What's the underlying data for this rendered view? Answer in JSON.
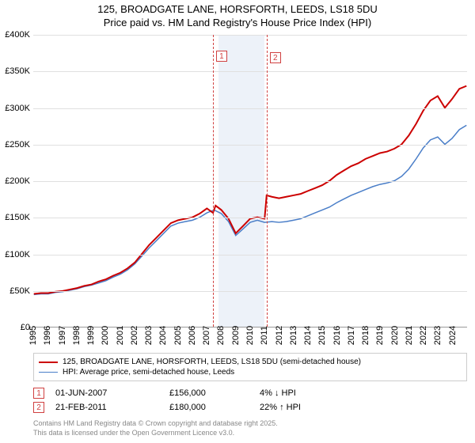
{
  "title_line1": "125, BROADGATE LANE, HORSFORTH, LEEDS, LS18 5DU",
  "title_line2": "Price paid vs. HM Land Registry's House Price Index (HPI)",
  "chart": {
    "type": "line",
    "x_start_year": 1995,
    "x_end_year": 2025,
    "y_min": 0,
    "y_max": 400000,
    "y_tick_step": 50000,
    "y_tick_labels": [
      "£0",
      "£50K",
      "£100K",
      "£150K",
      "£200K",
      "£250K",
      "£300K",
      "£350K",
      "£400K"
    ],
    "x_tick_labels": [
      "1995",
      "1996",
      "1997",
      "1998",
      "1999",
      "2000",
      "2001",
      "2002",
      "2003",
      "2004",
      "2005",
      "2006",
      "2007",
      "2008",
      "2009",
      "2010",
      "2011",
      "2012",
      "2013",
      "2014",
      "2015",
      "2016",
      "2017",
      "2018",
      "2019",
      "2020",
      "2021",
      "2022",
      "2023",
      "2024"
    ],
    "background_color": "#ffffff",
    "grid_color": "#e0e0e0",
    "series": [
      {
        "name": "property",
        "label": "125, BROADGATE LANE, HORSFORTH, LEEDS, LS18 5DU (semi-detached house)",
        "color": "#cc0000",
        "width": 2,
        "data": [
          [
            1995.0,
            45
          ],
          [
            1995.5,
            46
          ],
          [
            1996.0,
            46
          ],
          [
            1996.5,
            48
          ],
          [
            1997.0,
            49
          ],
          [
            1997.5,
            51
          ],
          [
            1998.0,
            53
          ],
          [
            1998.5,
            56
          ],
          [
            1999.0,
            58
          ],
          [
            1999.5,
            62
          ],
          [
            2000.0,
            65
          ],
          [
            2000.5,
            70
          ],
          [
            2001.0,
            74
          ],
          [
            2001.5,
            80
          ],
          [
            2002.0,
            88
          ],
          [
            2002.5,
            100
          ],
          [
            2003.0,
            112
          ],
          [
            2003.5,
            122
          ],
          [
            2004.0,
            132
          ],
          [
            2004.5,
            142
          ],
          [
            2005.0,
            146
          ],
          [
            2005.5,
            148
          ],
          [
            2006.0,
            150
          ],
          [
            2006.5,
            155
          ],
          [
            2007.0,
            162
          ],
          [
            2007.42,
            156
          ],
          [
            2007.6,
            166
          ],
          [
            2008.0,
            160
          ],
          [
            2008.5,
            148
          ],
          [
            2009.0,
            128
          ],
          [
            2009.5,
            138
          ],
          [
            2010.0,
            148
          ],
          [
            2010.5,
            150
          ],
          [
            2011.0,
            148
          ],
          [
            2011.14,
            180
          ],
          [
            2011.5,
            178
          ],
          [
            2012.0,
            176
          ],
          [
            2012.5,
            178
          ],
          [
            2013.0,
            180
          ],
          [
            2013.5,
            182
          ],
          [
            2014.0,
            186
          ],
          [
            2014.5,
            190
          ],
          [
            2015.0,
            194
          ],
          [
            2015.5,
            200
          ],
          [
            2016.0,
            208
          ],
          [
            2016.5,
            214
          ],
          [
            2017.0,
            220
          ],
          [
            2017.5,
            224
          ],
          [
            2018.0,
            230
          ],
          [
            2018.5,
            234
          ],
          [
            2019.0,
            238
          ],
          [
            2019.5,
            240
          ],
          [
            2020.0,
            244
          ],
          [
            2020.5,
            250
          ],
          [
            2021.0,
            262
          ],
          [
            2021.5,
            278
          ],
          [
            2022.0,
            296
          ],
          [
            2022.5,
            310
          ],
          [
            2023.0,
            316
          ],
          [
            2023.5,
            300
          ],
          [
            2024.0,
            312
          ],
          [
            2024.5,
            326
          ],
          [
            2025.0,
            330
          ]
        ]
      },
      {
        "name": "hpi",
        "label": "HPI: Average price, semi-detached house, Leeds",
        "color": "#4a7ec8",
        "width": 1.5,
        "data": [
          [
            1995.0,
            44
          ],
          [
            1995.5,
            45
          ],
          [
            1996.0,
            45
          ],
          [
            1996.5,
            47
          ],
          [
            1997.0,
            48
          ],
          [
            1997.5,
            50
          ],
          [
            1998.0,
            52
          ],
          [
            1998.5,
            55
          ],
          [
            1999.0,
            57
          ],
          [
            1999.5,
            60
          ],
          [
            2000.0,
            63
          ],
          [
            2000.5,
            68
          ],
          [
            2001.0,
            72
          ],
          [
            2001.5,
            78
          ],
          [
            2002.0,
            86
          ],
          [
            2002.5,
            97
          ],
          [
            2003.0,
            108
          ],
          [
            2003.5,
            118
          ],
          [
            2004.0,
            128
          ],
          [
            2004.5,
            138
          ],
          [
            2005.0,
            142
          ],
          [
            2005.5,
            144
          ],
          [
            2006.0,
            146
          ],
          [
            2006.5,
            150
          ],
          [
            2007.0,
            156
          ],
          [
            2007.5,
            160
          ],
          [
            2008.0,
            155
          ],
          [
            2008.5,
            144
          ],
          [
            2009.0,
            125
          ],
          [
            2009.5,
            134
          ],
          [
            2010.0,
            143
          ],
          [
            2010.5,
            146
          ],
          [
            2011.0,
            143
          ],
          [
            2011.5,
            144
          ],
          [
            2012.0,
            143
          ],
          [
            2012.5,
            144
          ],
          [
            2013.0,
            146
          ],
          [
            2013.5,
            148
          ],
          [
            2014.0,
            152
          ],
          [
            2014.5,
            156
          ],
          [
            2015.0,
            160
          ],
          [
            2015.5,
            164
          ],
          [
            2016.0,
            170
          ],
          [
            2016.5,
            175
          ],
          [
            2017.0,
            180
          ],
          [
            2017.5,
            184
          ],
          [
            2018.0,
            188
          ],
          [
            2018.5,
            192
          ],
          [
            2019.0,
            195
          ],
          [
            2019.5,
            197
          ],
          [
            2020.0,
            200
          ],
          [
            2020.5,
            206
          ],
          [
            2021.0,
            216
          ],
          [
            2021.5,
            230
          ],
          [
            2022.0,
            245
          ],
          [
            2022.5,
            256
          ],
          [
            2023.0,
            260
          ],
          [
            2023.5,
            250
          ],
          [
            2024.0,
            258
          ],
          [
            2024.5,
            270
          ],
          [
            2025.0,
            276
          ]
        ]
      }
    ],
    "shade_band": {
      "x_start": 2007.8,
      "x_end": 2011.0,
      "color": "#edf2f9"
    },
    "markers": [
      {
        "num": "1",
        "x": 2007.42
      },
      {
        "num": "2",
        "x": 2011.14
      }
    ]
  },
  "sales": [
    {
      "num": "1",
      "date": "01-JUN-2007",
      "price": "£156,000",
      "hpi": "4% ↓ HPI"
    },
    {
      "num": "2",
      "date": "21-FEB-2011",
      "price": "£180,000",
      "hpi": "22% ↑ HPI"
    }
  ],
  "footer_line1": "Contains HM Land Registry data © Crown copyright and database right 2025.",
  "footer_line2": "This data is licensed under the Open Government Licence v3.0."
}
